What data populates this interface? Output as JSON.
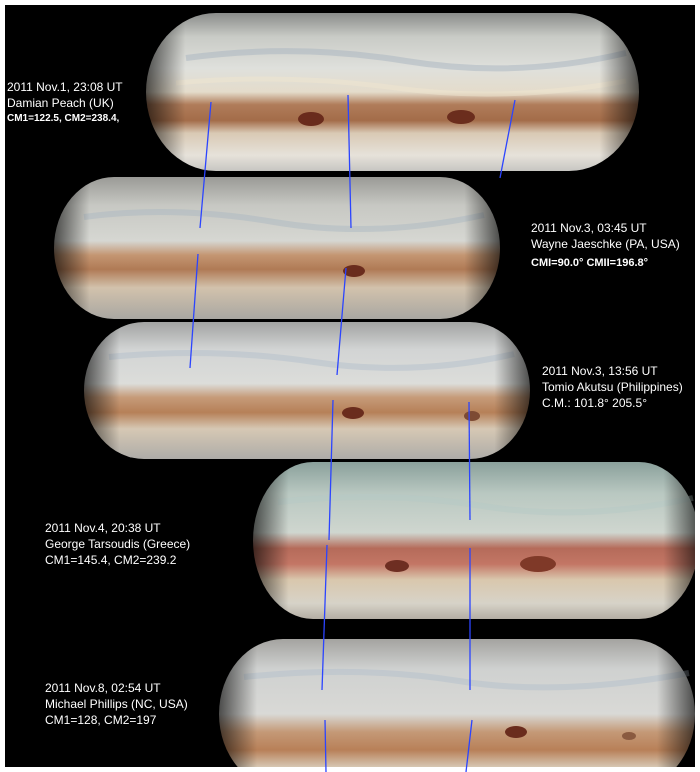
{
  "colors": {
    "background": "#000000",
    "track_line": "#2b44ff",
    "label_text": "#ffffff"
  },
  "observations": [
    {
      "date_time": "2011 Nov.1, 23:08 UT",
      "observer": "Damian Peach (UK)",
      "cm": "CM1=122.5, CM2=238.4,"
    },
    {
      "date_time": "2011 Nov.3, 03:45 UT",
      "observer": "Wayne Jaeschke (PA, USA)",
      "cm": "CMI=90.0° CMII=196.8°"
    },
    {
      "date_time": "2011 Nov.3, 13:56 UT",
      "observer": "Tomio Akutsu (Philippines)",
      "cm": "C.M.:   101.8°   205.5°"
    },
    {
      "date_time": "2011 Nov.4,  20:38 UT",
      "observer": "George Tarsoudis (Greece)",
      "cm": "CM1=145.4, CM2=239.2"
    },
    {
      "date_time": "2011 Nov.8, 02:54 UT",
      "observer": "Michael Phillips (NC, USA)",
      "cm": "CM1=128, CM2=197"
    }
  ]
}
